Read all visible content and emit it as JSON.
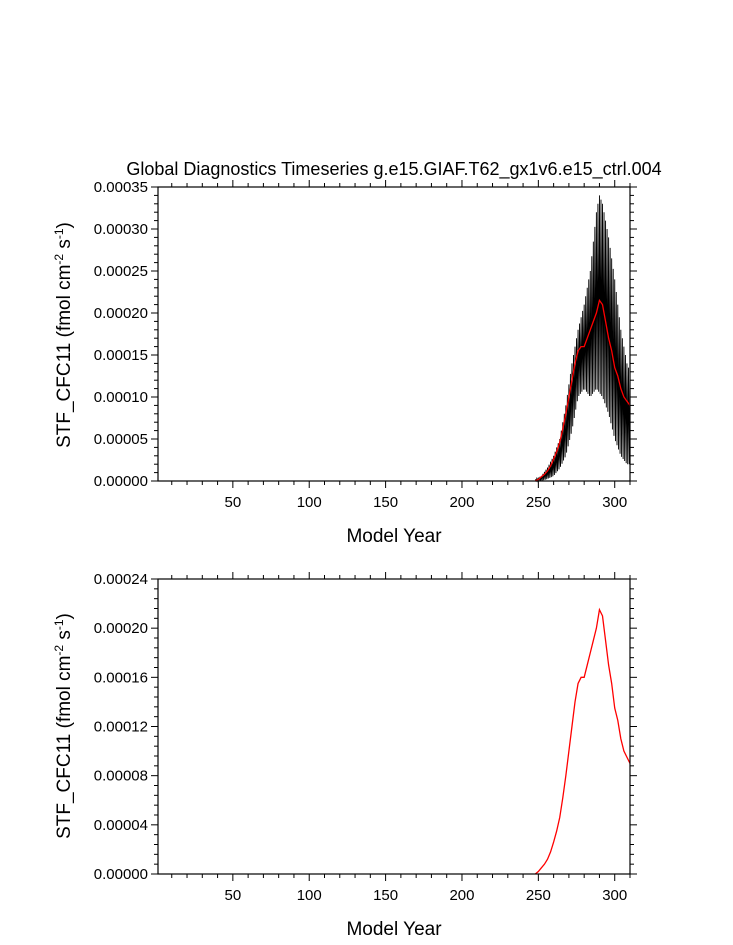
{
  "chart_data": [
    {
      "type": "line",
      "title": "Global Diagnostics Timeseries g.e15.GIAF.T62_gx1v6.e15_ctrl.004",
      "xlabel": "Model Year",
      "ylabel": {
        "main": "STF_CFC11 (fmol cm",
        "exp1": "-2",
        "mid": " s",
        "exp2": "-1",
        "end": ")"
      },
      "xlim": [
        1,
        310
      ],
      "ylim": [
        0,
        0.00035
      ],
      "xticks": [
        50,
        100,
        150,
        200,
        250,
        300
      ],
      "xtick_labels": [
        "50",
        "100",
        "150",
        "200",
        "250",
        "300"
      ],
      "yticks": [
        0,
        5e-05,
        0.0001,
        0.00015,
        0.0002,
        0.00025,
        0.0003,
        0.00035
      ],
      "ytick_labels": [
        "0.00000",
        "0.00005",
        "0.00010",
        "0.00015",
        "0.00020",
        "0.00025",
        "0.00030",
        "0.00035"
      ],
      "grid": false,
      "series": [
        {
          "kind": "monthly-envelope",
          "color": "#000000",
          "x": [
            248,
            252,
            256,
            260,
            264,
            268,
            272,
            276,
            280,
            284,
            288,
            290,
            292,
            296,
            300,
            304,
            308,
            310
          ],
          "upper": [
            2e-06,
            6e-06,
            1.6e-05,
            3e-05,
            5e-05,
            9e-05,
            0.00014,
            0.00018,
            0.00021,
            0.00025,
            0.00032,
            0.00034,
            0.00033,
            0.00029,
            0.00024,
            0.00018,
            0.00014,
            0.00013
          ],
          "lower": [
            0.0,
            0.0,
            2.5e-06,
            6e-06,
            1.5e-05,
            3e-05,
            6e-05,
            0.0001,
            0.00011,
            0.0001,
            0.00011,
            0.000105,
            0.0001,
            8e-05,
            5e-05,
            3e-05,
            2e-05,
            2e-05
          ]
        },
        {
          "kind": "annual-mean",
          "color": "#ff0000",
          "x": [
            248,
            250,
            252,
            254,
            256,
            258,
            260,
            262,
            264,
            266,
            268,
            270,
            272,
            274,
            276,
            278,
            280,
            282,
            284,
            286,
            288,
            290,
            292,
            294,
            296,
            298,
            300,
            302,
            304,
            306,
            308,
            310
          ],
          "y": [
            0.0,
            2e-06,
            5e-06,
            8e-06,
            1.2e-05,
            1.8e-05,
            2.6e-05,
            3.5e-05,
            4.6e-05,
            6.2e-05,
            8e-05,
            0.0001,
            0.00012,
            0.00014,
            0.000155,
            0.00016,
            0.00016,
            0.00017,
            0.00018,
            0.00019,
            0.0002,
            0.000215,
            0.00021,
            0.00019,
            0.00017,
            0.000155,
            0.000135,
            0.000125,
            0.00011,
            0.0001,
            9.5e-05,
            9e-05
          ]
        }
      ]
    },
    {
      "type": "line",
      "title": "",
      "xlabel": "Model Year",
      "ylabel": {
        "main": "STF_CFC11 (fmol cm",
        "exp1": "-2",
        "mid": " s",
        "exp2": "-1",
        "end": ")"
      },
      "xlim": [
        1,
        310
      ],
      "ylim": [
        0,
        0.00024
      ],
      "xticks": [
        50,
        100,
        150,
        200,
        250,
        300
      ],
      "xtick_labels": [
        "50",
        "100",
        "150",
        "200",
        "250",
        "300"
      ],
      "yticks": [
        0,
        4e-05,
        8e-05,
        0.00012,
        0.00016,
        0.0002,
        0.00024
      ],
      "ytick_labels": [
        "0.00000",
        "0.00004",
        "0.00008",
        "0.00012",
        "0.00016",
        "0.00020",
        "0.00024"
      ],
      "grid": false,
      "series": [
        {
          "kind": "annual-mean",
          "color": "#ff0000",
          "x": [
            248,
            250,
            252,
            254,
            256,
            258,
            260,
            262,
            264,
            266,
            268,
            270,
            272,
            274,
            276,
            278,
            280,
            282,
            284,
            286,
            288,
            290,
            292,
            294,
            296,
            298,
            300,
            302,
            304,
            306,
            308,
            310
          ],
          "y": [
            0.0,
            2e-06,
            5e-06,
            8e-06,
            1.2e-05,
            1.8e-05,
            2.6e-05,
            3.5e-05,
            4.6e-05,
            6.2e-05,
            8e-05,
            0.0001,
            0.00012,
            0.00014,
            0.000155,
            0.00016,
            0.00016,
            0.00017,
            0.00018,
            0.00019,
            0.0002,
            0.000215,
            0.00021,
            0.00019,
            0.00017,
            0.000155,
            0.000135,
            0.000125,
            0.00011,
            0.0001,
            9.5e-05,
            9e-05
          ]
        }
      ]
    }
  ]
}
